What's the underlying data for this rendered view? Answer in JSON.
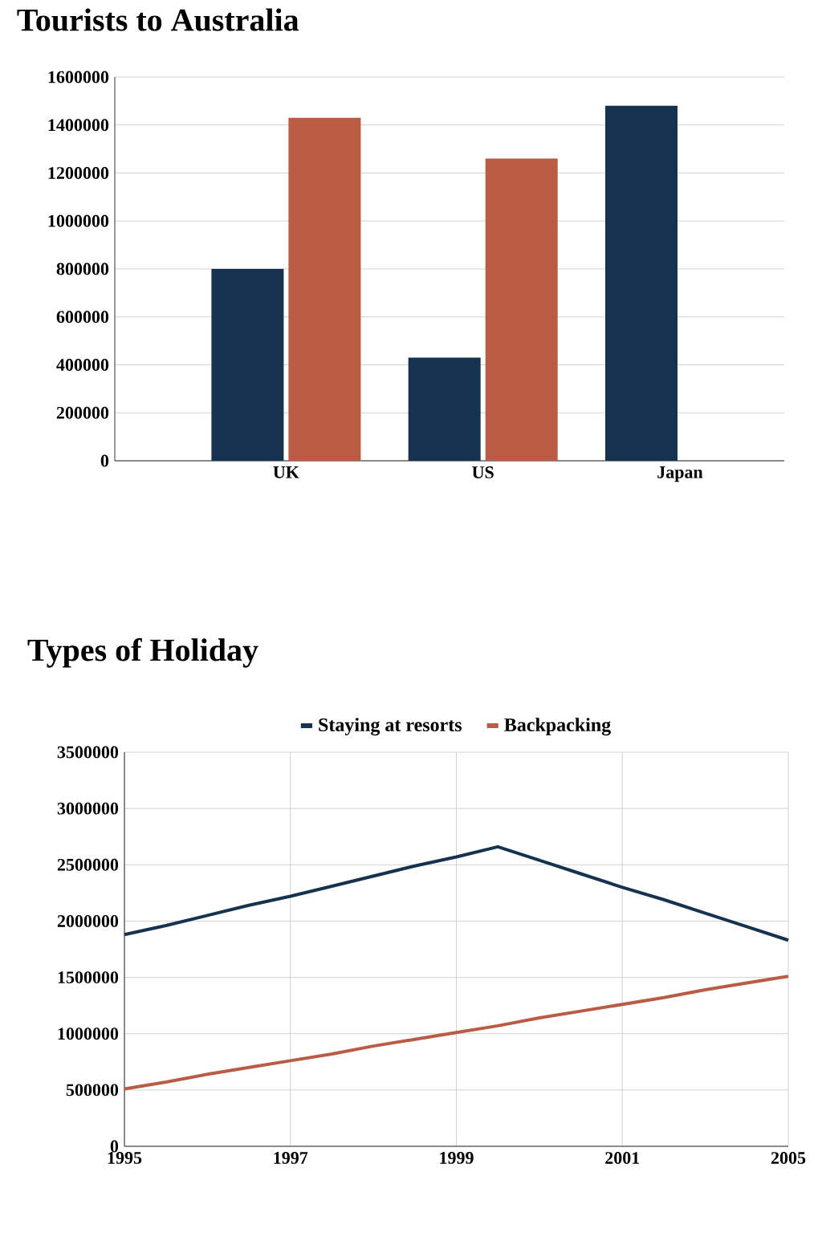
{
  "chart_data": [
    {
      "type": "bar",
      "title": "Tourists to Australia",
      "categories": [
        "UK",
        "US",
        "Japan"
      ],
      "series": [
        {
          "color": "#15324f",
          "values": [
            800000,
            430000,
            1480000
          ]
        },
        {
          "color": "#b95b45",
          "values": [
            1430000,
            1260000,
            null
          ]
        }
      ],
      "ylim": [
        0,
        1600000
      ],
      "yticks": [
        0,
        200000,
        400000,
        600000,
        800000,
        1000000,
        1200000,
        1400000,
        1600000
      ],
      "grid": "y",
      "legend": false
    },
    {
      "type": "line",
      "title": "Types of Holiday",
      "categories": [
        "1995",
        null,
        null,
        null,
        "1997",
        null,
        null,
        null,
        "1999",
        null,
        null,
        null,
        "2001",
        null,
        null,
        null,
        "2005"
      ],
      "series": [
        {
          "name": "Staying at resorts",
          "color": "#15324f",
          "values": [
            1880000,
            1960000,
            2050000,
            2140000,
            2220000,
            2310000,
            2400000,
            2490000,
            2570000,
            2660000,
            2540000,
            2420000,
            2300000,
            2190000,
            2070000,
            1950000,
            1830000
          ]
        },
        {
          "name": "Backpacking",
          "color": "#b95b45",
          "values": [
            510000,
            570000,
            640000,
            700000,
            760000,
            820000,
            890000,
            950000,
            1010000,
            1070000,
            1140000,
            1200000,
            1260000,
            1320000,
            1390000,
            1450000,
            1510000
          ]
        }
      ],
      "ylim": [
        0,
        3500000
      ],
      "yticks": [
        0,
        500000,
        1000000,
        1500000,
        2000000,
        2500000,
        3000000,
        3500000
      ],
      "grid": true,
      "legend": "top",
      "marker": "none",
      "line_style": "solid"
    }
  ]
}
